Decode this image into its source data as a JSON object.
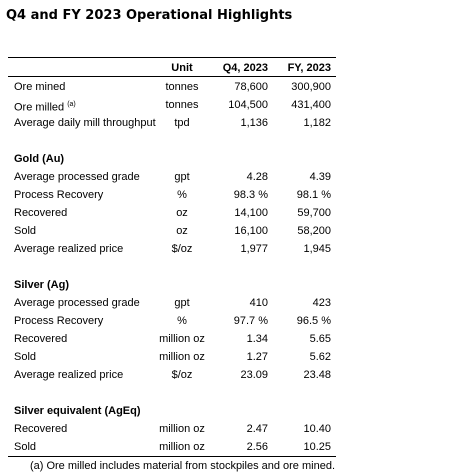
{
  "title": "Q4 and FY 2023 Operational Highlights",
  "table": {
    "header": [
      "Unit",
      "Q4, 2023",
      "FY, 2023"
    ],
    "sections": [
      {
        "rows": [
          {
            "label": "Ore mined",
            "unit": "tonnes",
            "q4": "78,600",
            "fy": "300,900"
          },
          {
            "label": "Ore milled",
            "note": "(a)",
            "unit": "tonnes",
            "q4": "104,500",
            "fy": "431,400"
          },
          {
            "label": "Average daily mill throughput",
            "unit": "tpd",
            "q4": "1,136",
            "fy": "1,182"
          }
        ]
      },
      {
        "heading": "Gold (Au)",
        "rows": [
          {
            "label": "Average processed grade",
            "unit": "gpt",
            "q4": "4.28",
            "fy": "4.39"
          },
          {
            "label": "Process Recovery",
            "unit": "%",
            "q4": "98.3 %",
            "fy": "98.1 %"
          },
          {
            "label": "Recovered",
            "unit": "oz",
            "q4": "14,100",
            "fy": "59,700"
          },
          {
            "label": "Sold",
            "unit": "oz",
            "q4": "16,100",
            "fy": "58,200"
          },
          {
            "label": "Average realized price",
            "unit": "$/oz",
            "q4": "1,977",
            "fy": "1,945"
          }
        ]
      },
      {
        "heading": "Silver (Ag)",
        "rows": [
          {
            "label": "Average processed grade",
            "unit": "gpt",
            "q4": "410",
            "fy": "423"
          },
          {
            "label": "Process Recovery",
            "unit": "%",
            "q4": "97.7 %",
            "fy": "96.5 %"
          },
          {
            "label": "Recovered",
            "unit": "million oz",
            "q4": "1.34",
            "fy": "5.65"
          },
          {
            "label": "Sold",
            "unit": "million oz",
            "q4": "1.27",
            "fy": "5.62"
          },
          {
            "label": "Average realized price",
            "unit": "$/oz",
            "q4": "23.09",
            "fy": "23.48"
          }
        ]
      },
      {
        "heading": "Silver equivalent (AgEq)",
        "rows": [
          {
            "label": "Recovered",
            "unit": "million oz",
            "q4": "2.47",
            "fy": "10.40"
          },
          {
            "label": "Sold",
            "unit": "million oz",
            "q4": "2.56",
            "fy": "10.25"
          }
        ]
      }
    ],
    "footnote": "(a) Ore milled includes material from stockpiles and ore mined."
  }
}
